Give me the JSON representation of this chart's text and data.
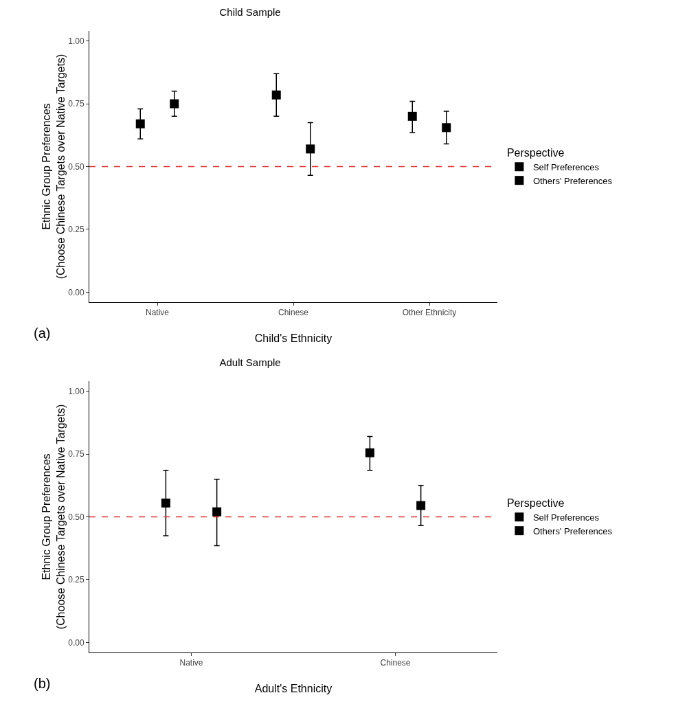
{
  "chart_data": [
    {
      "type": "scatter",
      "title": "Child Sample",
      "xlabel": "Child's Ethnicity",
      "ylabel": "Ethnic Group Preferences\n(Choose Chinese Targets over Native Targets)",
      "legend_title": "Perspective",
      "categories": [
        "Native",
        "Chinese",
        "Other Ethnicity"
      ],
      "series": [
        {
          "name": "Self Preferences",
          "color": "#000000",
          "values": [
            0.67,
            0.785,
            0.7
          ],
          "errors": [
            [
              0.61,
              0.73
            ],
            [
              0.7,
              0.87
            ],
            [
              0.635,
              0.76
            ]
          ]
        },
        {
          "name": "Others' Preferences",
          "color": "#000000",
          "values": [
            0.75,
            0.57,
            0.655
          ],
          "errors": [
            [
              0.7,
              0.8
            ],
            [
              0.465,
              0.675
            ],
            [
              0.59,
              0.72
            ]
          ]
        }
      ],
      "ylim": [
        -0.04,
        1.04
      ],
      "yticks": [
        {
          "value": 0,
          "label": "0.00"
        },
        {
          "value": 0.25,
          "label": "0.25"
        },
        {
          "value": 0.5,
          "label": "0.50"
        },
        {
          "value": 0.75,
          "label": "0.75"
        },
        {
          "value": 1,
          "label": "1.00"
        }
      ],
      "ref_lines": [
        {
          "axis": "y",
          "value": 0.5,
          "color": "#e03030",
          "line_style": "dashed"
        }
      ],
      "marker": "square",
      "grid": false,
      "legend": "right",
      "annotations": [
        "(a)"
      ]
    },
    {
      "type": "scatter",
      "title": "Adult Sample",
      "xlabel": "Adult's Ethnicity",
      "ylabel": "Ethnic Group Preferences\n(Choose Chinese Targets over Native Targets)",
      "legend_title": "Perspective",
      "categories": [
        "Native",
        "Chinese"
      ],
      "series": [
        {
          "name": "Self Preferences",
          "color": "#000000",
          "values": [
            0.555,
            0.755
          ],
          "errors": [
            [
              0.425,
              0.685
            ],
            [
              0.685,
              0.82
            ]
          ]
        },
        {
          "name": "Others' Preferences",
          "color": "#000000",
          "values": [
            0.52,
            0.545
          ],
          "errors": [
            [
              0.385,
              0.65
            ],
            [
              0.465,
              0.625
            ]
          ]
        }
      ],
      "ylim": [
        -0.04,
        1.04
      ],
      "yticks": [
        {
          "value": 0,
          "label": "0.00"
        },
        {
          "value": 0.25,
          "label": "0.25"
        },
        {
          "value": 0.5,
          "label": "0.50"
        },
        {
          "value": 0.75,
          "label": "0.75"
        },
        {
          "value": 1,
          "label": "1.00"
        }
      ],
      "ref_lines": [
        {
          "axis": "y",
          "value": 0.5,
          "color": "#e03030",
          "line_style": "dashed"
        }
      ],
      "marker": "square",
      "grid": false,
      "legend": "right",
      "annotations": [
        "(b)"
      ]
    }
  ]
}
